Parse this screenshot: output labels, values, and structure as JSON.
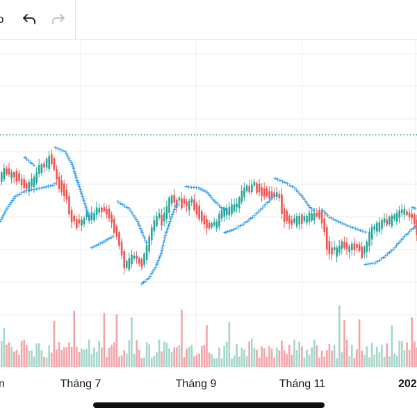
{
  "toolbar": {
    "partial_glyph": "o",
    "undo_icon": "undo-arrow-icon",
    "redo_icon": "redo-arrow-icon",
    "redo_enabled": false
  },
  "colors": {
    "up": "#26a69a",
    "down": "#ef5350",
    "up_volume": "#a5d6c9",
    "down_volume": "#f4a4a8",
    "psar": "#2196f3",
    "grid": "#ececec",
    "reference_line": "#26a69a"
  },
  "x_axis": {
    "labels": [
      "n",
      "Tháng 7",
      "Tháng 9",
      "Tháng 11",
      "202"
    ]
  },
  "chart_data": {
    "type": "candlestick",
    "indicators": [
      "Parabolic SAR",
      "Volume"
    ],
    "reference_line_style": "dotted",
    "grid": true,
    "x_ticks": [
      "Tháng 7",
      "Tháng 9",
      "Tháng 11"
    ],
    "price_path": [
      [
        0,
        255
      ],
      [
        6,
        240
      ],
      [
        12,
        250
      ],
      [
        18,
        248
      ],
      [
        24,
        255
      ],
      [
        30,
        262
      ],
      [
        38,
        270
      ],
      [
        44,
        262
      ],
      [
        50,
        255
      ],
      [
        56,
        240
      ],
      [
        60,
        235
      ],
      [
        64,
        240
      ],
      [
        68,
        225
      ],
      [
        72,
        228
      ],
      [
        78,
        250
      ],
      [
        84,
        262
      ],
      [
        90,
        272
      ],
      [
        96,
        290
      ],
      [
        100,
        312
      ],
      [
        106,
        318
      ],
      [
        112,
        320
      ],
      [
        118,
        315
      ],
      [
        126,
        310
      ],
      [
        134,
        308
      ],
      [
        140,
        300
      ],
      [
        148,
        302
      ],
      [
        154,
        305
      ],
      [
        160,
        318
      ],
      [
        166,
        335
      ],
      [
        172,
        355
      ],
      [
        178,
        385
      ],
      [
        184,
        375
      ],
      [
        190,
        370
      ],
      [
        196,
        372
      ],
      [
        202,
        378
      ],
      [
        208,
        360
      ],
      [
        214,
        340
      ],
      [
        220,
        320
      ],
      [
        226,
        308
      ],
      [
        232,
        320
      ],
      [
        238,
        300
      ],
      [
        244,
        280
      ],
      [
        250,
        290
      ],
      [
        256,
        288
      ],
      [
        262,
        292
      ],
      [
        268,
        295
      ],
      [
        274,
        290
      ],
      [
        280,
        296
      ],
      [
        286,
        310
      ],
      [
        292,
        318
      ],
      [
        298,
        325
      ],
      [
        304,
        322
      ],
      [
        310,
        320
      ],
      [
        316,
        308
      ],
      [
        322,
        302
      ],
      [
        328,
        300
      ],
      [
        334,
        296
      ],
      [
        340,
        293
      ],
      [
        346,
        280
      ],
      [
        352,
        268
      ],
      [
        358,
        270
      ],
      [
        364,
        265
      ],
      [
        370,
        270
      ],
      [
        376,
        272
      ],
      [
        382,
        278
      ],
      [
        388,
        280
      ],
      [
        394,
        282
      ],
      [
        400,
        280
      ],
      [
        404,
        300
      ],
      [
        410,
        312
      ],
      [
        416,
        318
      ],
      [
        422,
        316
      ],
      [
        428,
        310
      ],
      [
        434,
        318
      ],
      [
        440,
        312
      ],
      [
        446,
        310
      ],
      [
        452,
        306
      ],
      [
        458,
        308
      ],
      [
        464,
        320
      ],
      [
        470,
        355
      ],
      [
        476,
        360
      ],
      [
        482,
        358
      ],
      [
        490,
        352
      ],
      [
        498,
        355
      ],
      [
        506,
        354
      ],
      [
        514,
        356
      ],
      [
        520,
        365
      ],
      [
        526,
        350
      ],
      [
        532,
        332
      ],
      [
        538,
        328
      ],
      [
        544,
        320
      ],
      [
        550,
        316
      ],
      [
        556,
        318
      ],
      [
        562,
        312
      ],
      [
        568,
        308
      ],
      [
        574,
        305
      ],
      [
        580,
        304
      ],
      [
        588,
        308
      ],
      [
        594,
        312
      ],
      [
        600,
        338
      ]
    ]
  }
}
